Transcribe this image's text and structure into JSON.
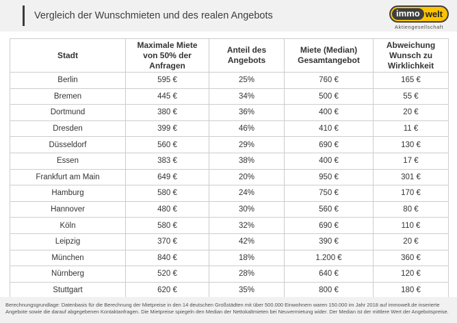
{
  "header": {
    "title": "Vergleich der Wunschmieten und des realen Angebots",
    "logo": {
      "part1": "immo",
      "part2": "welt",
      "subtitle": "Aktiengesellschaft"
    }
  },
  "colors": {
    "brand_yellow": "#fdc300",
    "logo_dark": "#3e3e3e",
    "band_gray": "#f1f1f1",
    "table_border": "#cccccc",
    "text_dark": "#3c3c3c"
  },
  "chart_data": {
    "type": "table",
    "title": "Vergleich der Wunschmieten und des realen Angebots",
    "columns": [
      "Stadt",
      "Maximale Miete\nvon 50% der\nAnfragen",
      "Anteil des\nAngebots",
      "Miete (Median)\nGesamtangebot",
      "Abweichung\nWunsch zu\nWirklichkeit"
    ],
    "rows": [
      [
        "Berlin",
        "595 €",
        "25%",
        "760 €",
        "165 €"
      ],
      [
        "Bremen",
        "445 €",
        "34%",
        "500 €",
        "55 €"
      ],
      [
        "Dortmund",
        "380 €",
        "36%",
        "400 €",
        "20 €"
      ],
      [
        "Dresden",
        "399 €",
        "46%",
        "410 €",
        "11 €"
      ],
      [
        "Düsseldorf",
        "560 €",
        "29%",
        "690 €",
        "130 €"
      ],
      [
        "Essen",
        "383 €",
        "38%",
        "400 €",
        "17 €"
      ],
      [
        "Frankfurt am Main",
        "649 €",
        "20%",
        "950 €",
        "301 €"
      ],
      [
        "Hamburg",
        "580 €",
        "24%",
        "750 €",
        "170 €"
      ],
      [
        "Hannover",
        "480 €",
        "30%",
        "560 €",
        "80 €"
      ],
      [
        "Köln",
        "580 €",
        "32%",
        "690 €",
        "110 €"
      ],
      [
        "Leipzig",
        "370 €",
        "42%",
        "390 €",
        "20 €"
      ],
      [
        "München",
        "840 €",
        "18%",
        "1.200 €",
        "360 €"
      ],
      [
        "Nürnberg",
        "520 €",
        "28%",
        "640 €",
        "120 €"
      ],
      [
        "Stuttgart",
        "620 €",
        "35%",
        "800 €",
        "180 €"
      ]
    ]
  },
  "footer": {
    "line1": "Berechnungsgrundlage: Datenbasis für die Berechnung der Mietpreise in den 14 deutschen Großstädten mit über 500.000 Einwohnern waren 150.000 im Jahr 2018 auf immowelt.de inserierte",
    "line2": "Angebote sowie die darauf abgegebenen Kontaktanfragen. Die Mietpreise spiegeln den Median der Nettokaltmieten bei Neuvermietung wider. Der Median ist der mittlere Wert der Angebotspreise."
  }
}
